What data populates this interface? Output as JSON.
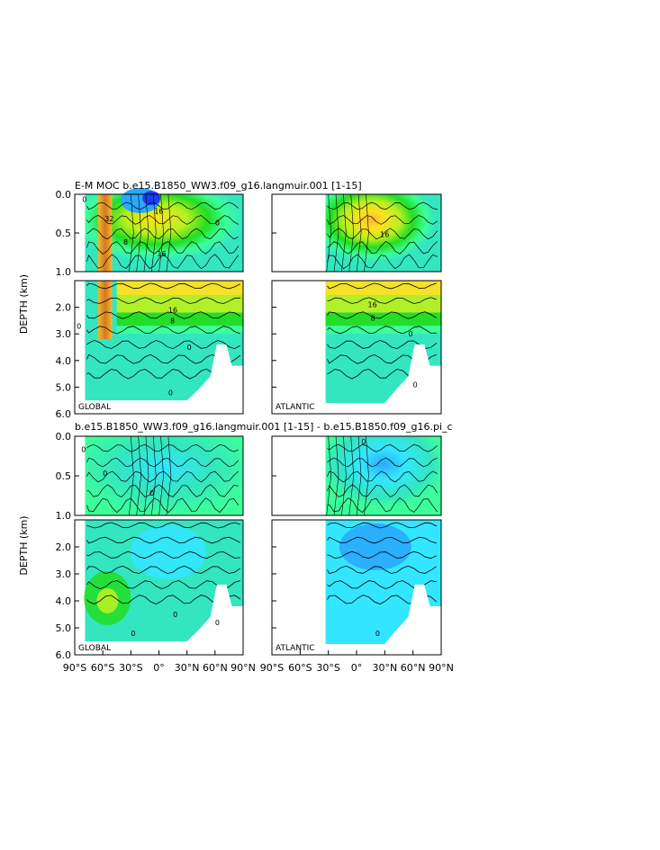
{
  "chart_data": {
    "type": "heatmap",
    "title_top": "E-M MOC   b.e15.B1850_WW3.f09_g16.langmuir.001  [1-15]",
    "title_bottom": "b.e15.B1850_WW3.f09_g16.langmuir.001  [1-15]  -  b.e15.B1850.f09_g16.pi_c",
    "ylabel": "DEPTH (km)",
    "upper_yticks": [
      "0.0",
      "0.5",
      "1.0"
    ],
    "lower_yticks": [
      "2.0",
      "3.0",
      "4.0",
      "5.0",
      "6.0"
    ],
    "xticks_global": [
      "90°S",
      "60°S",
      "30°S",
      "0°",
      "30°N",
      "60°N",
      "90°N"
    ],
    "xticks_atlantic": [
      "90°S",
      "60°S",
      "30°S",
      "0°",
      "30°N",
      "60°N",
      "90°N"
    ],
    "xlim": [
      -90,
      90
    ],
    "ylim_upper": [
      0,
      1
    ],
    "ylim_lower": [
      1,
      6
    ],
    "panels": [
      {
        "label": "GLOBAL",
        "row": 0,
        "col": 0,
        "lat_min": -79,
        "ocean_bottom_km": 5.5,
        "contour_labels": [
          {
            "text": "32",
            "lat": -58,
            "depth": 0.35
          },
          {
            "text": "16",
            "lat": -5,
            "depth": 0.25
          },
          {
            "text": "16",
            "lat": -2,
            "depth": 0.8
          },
          {
            "text": "8",
            "lat": -38,
            "depth": 0.65
          },
          {
            "text": "16",
            "lat": 10,
            "depth": 2.2
          },
          {
            "text": "8",
            "lat": 12,
            "depth": 2.6
          },
          {
            "text": "0",
            "lat": -82,
            "depth": 0.1
          },
          {
            "text": "0",
            "lat": 60,
            "depth": 0.4
          },
          {
            "text": "0",
            "lat": -88,
            "depth": 2.8
          },
          {
            "text": "0",
            "lat": 30,
            "depth": 3.6
          },
          {
            "text": "0",
            "lat": 10,
            "depth": 5.3
          }
        ]
      },
      {
        "label": "ATLANTIC",
        "row": 0,
        "col": 1,
        "lat_min": -33,
        "ocean_bottom_km": 5.6,
        "contour_labels": [
          {
            "text": "16",
            "lat": 25,
            "depth": 0.55
          },
          {
            "text": "16",
            "lat": 12,
            "depth": 2.0
          },
          {
            "text": "8",
            "lat": 15,
            "depth": 2.5
          },
          {
            "text": "0",
            "lat": 55,
            "depth": 3.1
          },
          {
            "text": "0",
            "lat": 60,
            "depth": 5.0
          }
        ]
      },
      {
        "label": "GLOBAL",
        "row": 1,
        "col": 0,
        "lat_min": -79,
        "ocean_bottom_km": 5.5,
        "contour_labels": [
          {
            "text": "0",
            "lat": -83,
            "depth": 0.2
          },
          {
            "text": "0",
            "lat": -60,
            "depth": 0.5
          },
          {
            "text": "0",
            "lat": -10,
            "depth": 0.75
          },
          {
            "text": "0",
            "lat": 15,
            "depth": 4.6
          },
          {
            "text": "0",
            "lat": -30,
            "depth": 5.3
          },
          {
            "text": "0",
            "lat": 60,
            "depth": 4.9
          }
        ]
      },
      {
        "label": "ATLANTIC",
        "row": 1,
        "col": 1,
        "lat_min": -33,
        "ocean_bottom_km": 5.6,
        "contour_labels": [
          {
            "text": "0",
            "lat": 5,
            "depth": 0.1
          },
          {
            "text": "0",
            "lat": 20,
            "depth": 5.3
          }
        ]
      }
    ],
    "colors": {
      "deep_blue": "#1a3cff",
      "blue": "#2aa8ff",
      "cyan": "#33e6ff",
      "teal": "#33e6c0",
      "green_light": "#3dff9a",
      "green": "#22dd22",
      "yellow_green": "#b8f020",
      "yellow": "#ffe020",
      "orange": "#f5b830",
      "brown": "#d07a20",
      "land": "#ffffff"
    }
  }
}
